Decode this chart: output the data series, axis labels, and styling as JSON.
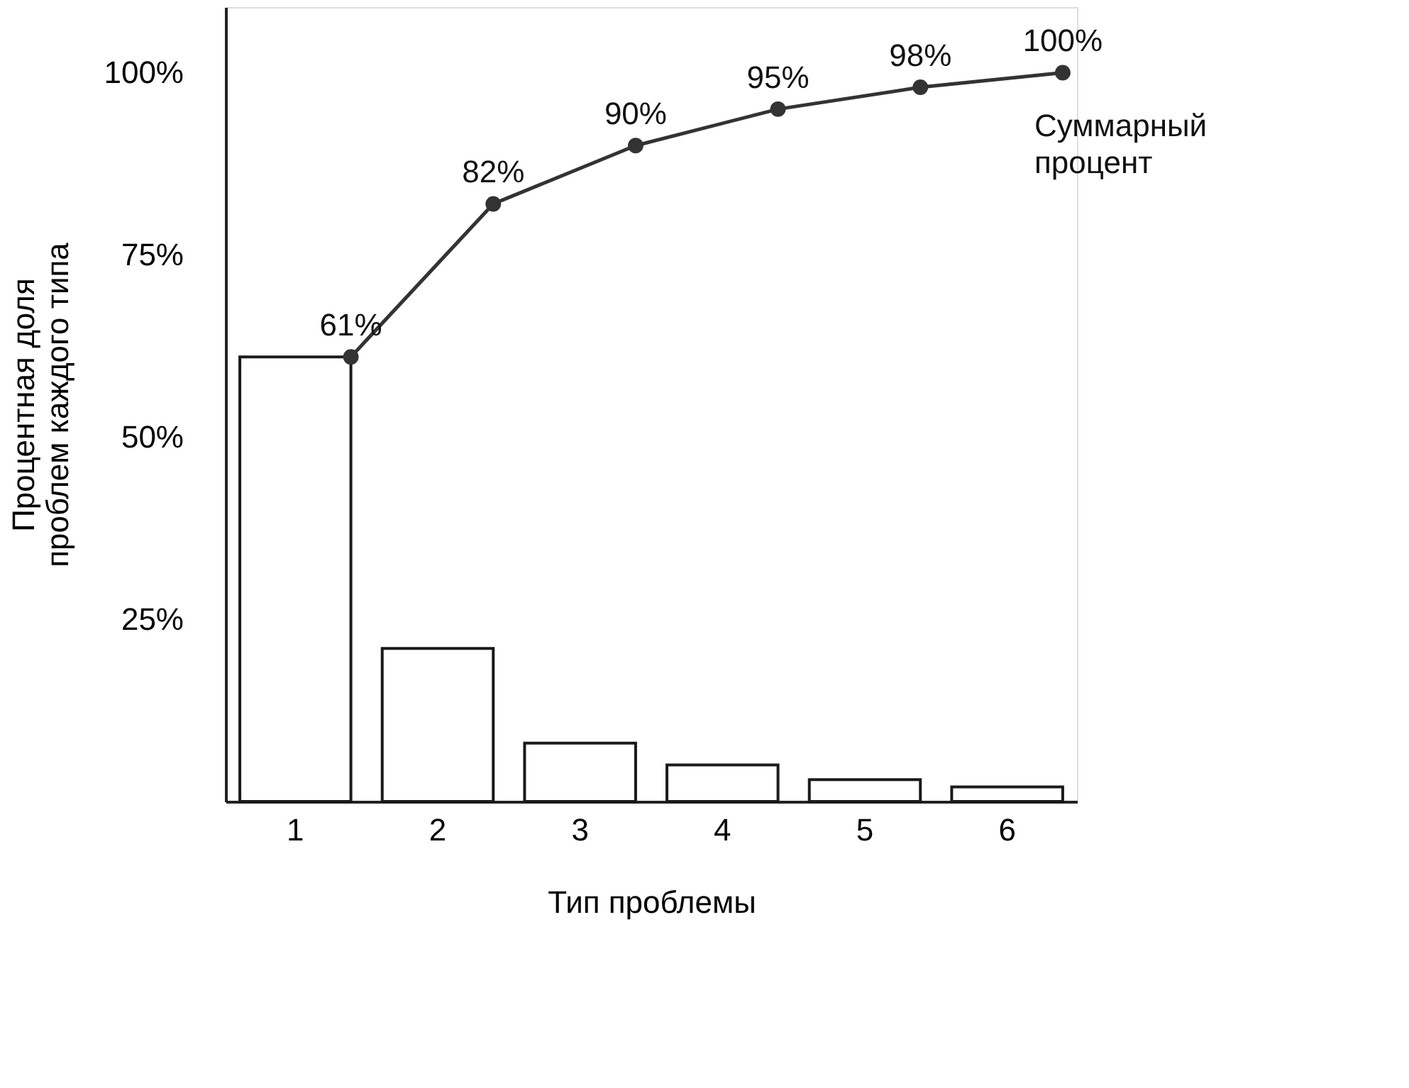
{
  "chart_data": {
    "type": "bar",
    "xlabel": "Тип проблемы",
    "ylabel": "Процентная доля проблем каждого типа",
    "categories": [
      "1",
      "2",
      "3",
      "4",
      "5",
      "6"
    ],
    "series": [
      {
        "color": "#1a1a1a",
        "values": [
          61,
          21,
          8,
          5,
          3,
          2
        ]
      },
      {
        "type": "line",
        "name": "Суммарный процент",
        "color": "#333333",
        "values": [
          61,
          82,
          90,
          95,
          98,
          100
        ],
        "value_labels": [
          "61%",
          "82%",
          "90%",
          "95%",
          "98%",
          "100%"
        ]
      }
    ],
    "ylim": [
      0,
      109
    ],
    "yticks": [
      {
        "value": 25,
        "label": "25%"
      },
      {
        "value": 50,
        "label": "50%"
      },
      {
        "value": 75,
        "label": "75%"
      },
      {
        "value": 100,
        "label": "100%"
      }
    ],
    "grid": false,
    "marker": "circle"
  }
}
